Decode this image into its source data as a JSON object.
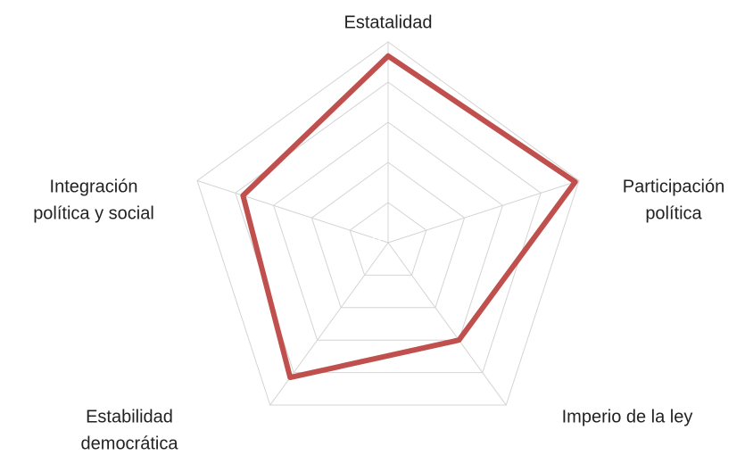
{
  "chart_data": {
    "type": "radar",
    "categories": [
      [
        "Estatalidad"
      ],
      [
        "Participación",
        "política"
      ],
      [
        "Imperio de la ley"
      ],
      [
        "Estabilidad",
        "democrática"
      ],
      [
        "Integración",
        "política y social"
      ]
    ],
    "series": [
      {
        "color": "#c0504d",
        "values": [
          9.3,
          9.8,
          6.0,
          8.3,
          7.6
        ]
      }
    ],
    "ylim": [
      0,
      10
    ],
    "yticks": [
      0,
      2,
      4,
      6,
      8,
      10
    ],
    "grid": true
  }
}
